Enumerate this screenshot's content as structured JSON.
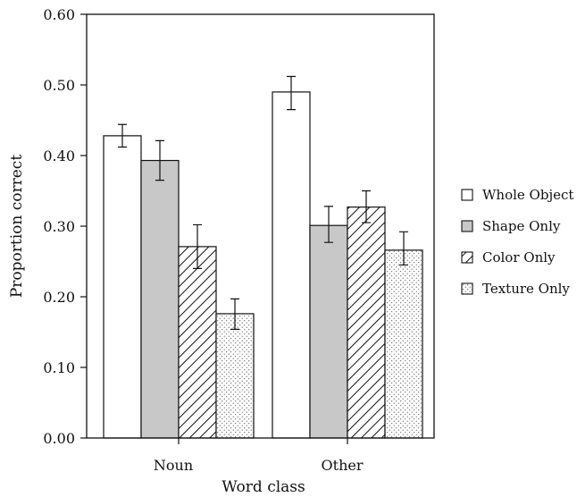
{
  "chart_data": {
    "type": "bar",
    "xlabel": "Word class",
    "ylabel": "Proportion correct",
    "ylim": [
      0,
      0.6
    ],
    "yticks": [
      "0.00",
      "0.10",
      "0.20",
      "0.30",
      "0.40",
      "0.50",
      "0.60"
    ],
    "categories": [
      "Noun",
      "Other"
    ],
    "series": [
      {
        "name": "Whole Object",
        "pattern": "blank",
        "values": [
          0.428,
          0.49
        ],
        "error_plus": [
          0.016,
          0.022
        ],
        "error_minus": [
          0.016,
          0.025
        ]
      },
      {
        "name": "Shape Only",
        "pattern": "gray",
        "values": [
          0.393,
          0.301
        ],
        "error_plus": [
          0.028,
          0.027
        ],
        "error_minus": [
          0.028,
          0.024
        ]
      },
      {
        "name": "Color Only",
        "pattern": "diagonal-hatch",
        "values": [
          0.271,
          0.327
        ],
        "error_plus": [
          0.031,
          0.023
        ],
        "error_minus": [
          0.031,
          0.022
        ]
      },
      {
        "name": "Texture Only",
        "pattern": "dots",
        "values": [
          0.176,
          0.266
        ],
        "error_plus": [
          0.021,
          0.026
        ],
        "error_minus": [
          0.022,
          0.021
        ]
      }
    ],
    "legend_position": "right",
    "grid": false
  },
  "colors": {
    "outline": "#111111",
    "blank_fill": "#ffffff",
    "gray_fill": "#c8c8c8"
  }
}
